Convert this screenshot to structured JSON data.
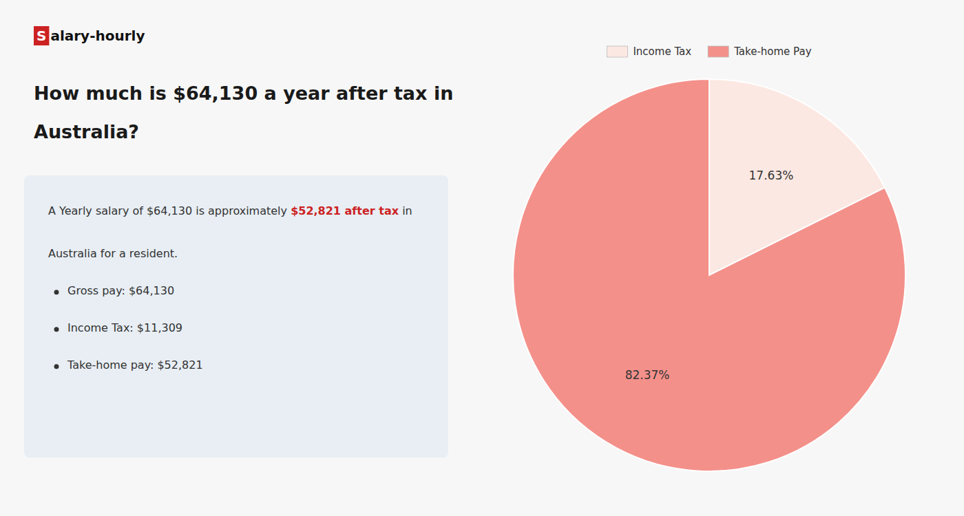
{
  "chart_data": {
    "type": "pie",
    "title": [
      "How much is $64,130 a year after tax in",
      "Australia?"
    ],
    "annotations": [
      [
        {
          "text": "S",
          "color": "#cc2222"
        },
        {
          "text": "alary-hourly"
        }
      ],
      [
        {
          "text": "A Yearly salary of $64,130 is approximately "
        },
        {
          "text": "$52,821 after tax",
          "color": "#cc2222"
        },
        {
          "text": " in"
        }
      ],
      [
        {
          "text": "Australia for a resident."
        }
      ],
      [
        {
          "text": "Gross pay: $64,130"
        }
      ],
      [
        {
          "text": "Income Tax: $11,309"
        }
      ],
      [
        {
          "text": "Take-home pay: $52,821"
        }
      ]
    ],
    "categories": [
      "Income Tax",
      "Take-home Pay"
    ],
    "values": [
      17.63,
      82.37
    ],
    "value_labels": [
      "17.63%",
      "82.37%"
    ],
    "colors": [
      "#fce8e2",
      "#f4908a"
    ],
    "data_labels": true,
    "legend": "top"
  }
}
